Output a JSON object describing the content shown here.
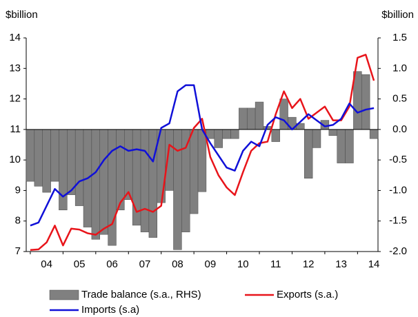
{
  "chart_data": {
    "type": "combo",
    "y_label": "$billion",
    "y2_label": "$billion",
    "categories": [
      null,
      null,
      "04",
      null,
      null,
      null,
      "05",
      null,
      null,
      null,
      "06",
      null,
      null,
      null,
      "07",
      null,
      null,
      null,
      "08",
      null,
      null,
      null,
      "09",
      null,
      null,
      null,
      "10",
      null,
      null,
      null,
      "11",
      null,
      null,
      null,
      "12",
      null,
      null,
      null,
      "13",
      null,
      null,
      null,
      "14"
    ],
    "series": [
      {
        "name": "Trade balance (s.a., RHS)",
        "type": "bar",
        "axis": "y2",
        "color": "#808080",
        "values": [
          -0.85,
          -0.93,
          -1.03,
          -0.85,
          -1.32,
          -1.07,
          -1.25,
          -1.6,
          -1.8,
          -1.72,
          -1.9,
          -1.32,
          -1.15,
          -1.57,
          -1.68,
          -1.77,
          -1.2,
          -1.0,
          -1.97,
          -1.68,
          -1.38,
          -1.02,
          -0.15,
          -0.3,
          -0.15,
          -0.15,
          0.35,
          0.35,
          0.45,
          0.05,
          -0.2,
          0.5,
          0.2,
          0.1,
          -0.8,
          -0.3,
          0.15,
          -0.1,
          -0.55,
          -0.55,
          0.95,
          0.9,
          -0.15
        ]
      },
      {
        "name": "Exports (s.a.)",
        "type": "line",
        "color": "#e8141a",
        "values": [
          7.05,
          7.07,
          7.3,
          7.85,
          7.2,
          7.75,
          7.72,
          7.6,
          7.55,
          7.75,
          7.9,
          8.6,
          8.95,
          8.3,
          8.4,
          8.3,
          8.5,
          10.5,
          10.3,
          10.4,
          11.05,
          11.35,
          10.1,
          9.5,
          9.1,
          8.85,
          9.6,
          10.3,
          10.55,
          10.6,
          11.5,
          12.25,
          11.7,
          12.0,
          11.35,
          11.55,
          11.75,
          11.3,
          11.3,
          11.75,
          13.35,
          13.45,
          12.6
        ]
      },
      {
        "name": "Imports (s.a)",
        "type": "line",
        "color": "#1010d8",
        "values": [
          7.85,
          7.95,
          8.5,
          9.05,
          8.8,
          9.0,
          9.3,
          9.4,
          9.6,
          10.0,
          10.3,
          10.45,
          10.3,
          10.35,
          10.3,
          9.95,
          11.05,
          11.2,
          12.25,
          12.45,
          12.45,
          11.0,
          10.55,
          10.15,
          9.75,
          9.65,
          10.3,
          10.6,
          10.45,
          11.15,
          11.4,
          11.3,
          11.0,
          11.25,
          11.5,
          11.3,
          11.1,
          11.15,
          11.35,
          11.85,
          11.55,
          11.65,
          11.7
        ]
      }
    ],
    "ylim": [
      7,
      14
    ],
    "yticks": [
      7,
      8,
      9,
      10,
      11,
      12,
      13,
      14
    ],
    "y2lim": [
      -2,
      1.5
    ],
    "y2ticks": [
      {
        "value": -2,
        "label": "-2.0"
      },
      {
        "value": -1.5,
        "label": "-1.5"
      },
      {
        "value": -1,
        "label": "-1.0"
      },
      {
        "value": -0.5,
        "label": "-0.5"
      },
      {
        "value": 0,
        "label": "0.0"
      },
      {
        "value": 0.5,
        "label": "0.5"
      },
      {
        "value": 1,
        "label": "1.0"
      },
      {
        "value": 1.5,
        "label": "1.5"
      }
    ],
    "grid": false
  }
}
